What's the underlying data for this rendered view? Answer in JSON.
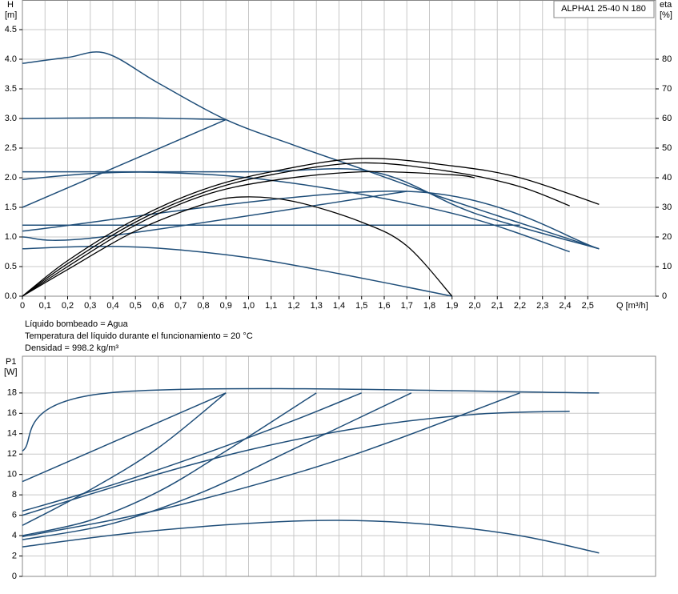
{
  "chart_data": [
    {
      "type": "line",
      "title": "ALPHA1 25-40 N 180",
      "ylabel": "H",
      "yunit": "[m]",
      "y2label": "eta",
      "y2unit": "[%]",
      "xlabel": "Q [m³/h]",
      "notes": [
        "Líquido bombeado = Agua",
        "Temperatura del líquido durante el funcionamiento = 20 °C",
        "Densidad = 998.2 kg/m³"
      ],
      "xlim": [
        0,
        2.8
      ],
      "ylim": [
        0,
        5
      ],
      "y2lim": [
        0,
        100
      ],
      "grid": true,
      "xticks": [
        0,
        {
          "value": 0.1,
          "label": "0,1"
        },
        {
          "value": 0.2,
          "label": "0,2"
        },
        {
          "value": 0.3,
          "label": "0,3"
        },
        {
          "value": 0.4,
          "label": "0,4"
        },
        {
          "value": 0.5,
          "label": "0,5"
        },
        {
          "value": 0.6,
          "label": "0,6"
        },
        {
          "value": 0.7,
          "label": "0,7"
        },
        {
          "value": 0.8,
          "label": "0,8"
        },
        {
          "value": 0.9,
          "label": "0,9"
        },
        {
          "value": 1.0,
          "label": "1,0"
        },
        {
          "value": 1.1,
          "label": "1,1"
        },
        {
          "value": 1.2,
          "label": "1,2"
        },
        {
          "value": 1.3,
          "label": "1,3"
        },
        {
          "value": 1.4,
          "label": "1,4"
        },
        {
          "value": 1.5,
          "label": "1,5"
        },
        {
          "value": 1.6,
          "label": "1,6"
        },
        {
          "value": 1.7,
          "label": "1,7"
        },
        {
          "value": 1.8,
          "label": "1,8"
        },
        {
          "value": 1.9,
          "label": "1,9"
        },
        {
          "value": 2.0,
          "label": "2,0"
        },
        {
          "value": 2.1,
          "label": "2,1"
        },
        {
          "value": 2.2,
          "label": "2,2"
        },
        {
          "value": 2.3,
          "label": "2,3"
        },
        {
          "value": 2.4,
          "label": "2,4"
        },
        {
          "value": 2.5,
          "label": "2,5"
        }
      ],
      "yticks": [
        {
          "value": 0,
          "label": "0.0"
        },
        0.5,
        {
          "value": 1,
          "label": "1.0"
        },
        1.5,
        {
          "value": 2,
          "label": "2.0"
        },
        2.5,
        {
          "value": 3,
          "label": "3.0"
        },
        3.5,
        {
          "value": 4,
          "label": "4.0"
        },
        4.5
      ],
      "y2ticks": [
        0,
        10,
        20,
        30,
        40,
        50,
        60,
        70,
        80
      ],
      "series": [
        {
          "color": "#1f4e79",
          "x": [
            0,
            0.2,
            0.37,
            0.6,
            0.9,
            1.2,
            1.5,
            1.8,
            2.1,
            2.35,
            2.55
          ],
          "values": [
            3.93,
            4.03,
            4.1,
            3.6,
            2.98,
            2.55,
            2.15,
            1.74,
            1.36,
            1.05,
            0.8
          ]
        },
        {
          "color": "#1f4e79",
          "x": [
            0,
            0.5,
            0.9
          ],
          "values": [
            3.0,
            3.01,
            2.98
          ]
        },
        {
          "color": "#1f4e79",
          "x": [
            0,
            0.9
          ],
          "values": [
            1.5,
            2.98
          ]
        },
        {
          "color": "#1f4e79",
          "x": [
            0,
            1.0,
            1.55,
            2.0,
            2.55
          ],
          "values": [
            2.1,
            2.1,
            2.1,
            1.4,
            0.8
          ]
        },
        {
          "color": "#1f4e79",
          "x": [
            0,
            0.3,
            0.6,
            1.0,
            1.5,
            2.0,
            2.42
          ],
          "values": [
            1.97,
            2.07,
            2.09,
            2.0,
            1.72,
            1.3,
            0.75
          ]
        },
        {
          "color": "#1f4e79",
          "x": [
            0,
            1.7,
            2.55
          ],
          "values": [
            1.1,
            1.77,
            0.8
          ]
        },
        {
          "color": "#1f4e79",
          "x": [
            0,
            2.2
          ],
          "values": [
            1.2,
            1.2
          ]
        },
        {
          "color": "#1f4e79",
          "x": [
            0,
            0.35,
            1.7
          ],
          "values": [
            1.0,
            1.0,
            1.77
          ]
        },
        {
          "color": "#1f4e79",
          "x": [
            0,
            0.3,
            0.6,
            1.0,
            1.4,
            1.9
          ],
          "values": [
            0.8,
            0.84,
            0.81,
            0.65,
            0.38,
            0.0
          ]
        },
        {
          "color": "#000000",
          "axis": "y2",
          "x": [
            0,
            0.2,
            0.5,
            0.8,
            1.1,
            1.5,
            1.9,
            2.2,
            2.55
          ],
          "values": [
            0,
            12,
            26,
            36,
            42,
            46.5,
            44,
            40,
            31
          ]
        },
        {
          "color": "#000000",
          "axis": "y2",
          "x": [
            0,
            0.2,
            0.5,
            0.8,
            1.1,
            1.5,
            1.9,
            2.2,
            2.42
          ],
          "values": [
            0,
            11,
            25,
            35,
            41,
            45,
            42,
            37,
            30.5
          ]
        },
        {
          "color": "#000000",
          "axis": "y2",
          "x": [
            0,
            0.2,
            0.5,
            0.8,
            1.1,
            1.5,
            1.9,
            2.0
          ],
          "values": [
            0,
            10,
            24,
            34,
            39,
            42,
            41,
            40
          ]
        },
        {
          "color": "#000000",
          "axis": "y2",
          "x": [
            0,
            0.2,
            0.5,
            0.8,
            0.97,
            1.2,
            1.5,
            1.7,
            1.9
          ],
          "values": [
            0,
            9,
            22,
            31,
            33.5,
            32,
            25,
            17,
            0
          ]
        }
      ]
    },
    {
      "type": "line",
      "ylabel": "P1",
      "yunit": "[W]",
      "xlim": [
        0,
        2.8
      ],
      "ylim": [
        0,
        21.6
      ],
      "grid": true,
      "yticks": [
        0,
        2,
        4,
        6,
        8,
        10,
        12,
        14,
        16,
        18
      ],
      "series": [
        {
          "color": "#1f4e79",
          "x": [
            0,
            0.38,
            2.55
          ],
          "values": [
            12.3,
            18,
            18
          ]
        },
        {
          "color": "#1f4e79",
          "x": [
            0,
            0.3,
            0.6,
            0.9
          ],
          "values": [
            9.3,
            12.2,
            15.1,
            18
          ]
        },
        {
          "color": "#1f4e79",
          "x": [
            0,
            0.3,
            0.6,
            0.9
          ],
          "values": [
            5,
            8.5,
            12.6,
            18
          ]
        },
        {
          "color": "#1f4e79",
          "x": [
            0,
            0.4,
            0.8,
            1.2,
            1.5
          ],
          "values": [
            6.4,
            9,
            12,
            15.3,
            18
          ]
        },
        {
          "color": "#1f4e79",
          "x": [
            0,
            0.3,
            0.6,
            0.9,
            1.3
          ],
          "values": [
            4.0,
            5.5,
            8.3,
            12.3,
            18
          ]
        },
        {
          "color": "#1f4e79",
          "x": [
            0,
            0.4,
            0.8,
            1.2,
            1.72
          ],
          "values": [
            3.6,
            5.2,
            8.3,
            12.5,
            18
          ]
        },
        {
          "color": "#1f4e79",
          "x": [
            0,
            0.5,
            1.0,
            1.5,
            2.2
          ],
          "values": [
            3.9,
            6.0,
            8.8,
            12.2,
            18
          ]
        },
        {
          "color": "#1f4e79",
          "x": [
            0,
            0.5,
            1.0,
            1.5,
            2.0,
            2.42
          ],
          "values": [
            6.0,
            9.4,
            12.4,
            14.6,
            15.9,
            16.2
          ]
        },
        {
          "color": "#1f4e79",
          "x": [
            0,
            0.5,
            1.0,
            1.4,
            1.8,
            2.2,
            2.55
          ],
          "values": [
            2.9,
            4.3,
            5.2,
            5.5,
            5.1,
            4.0,
            2.3
          ]
        }
      ]
    }
  ]
}
